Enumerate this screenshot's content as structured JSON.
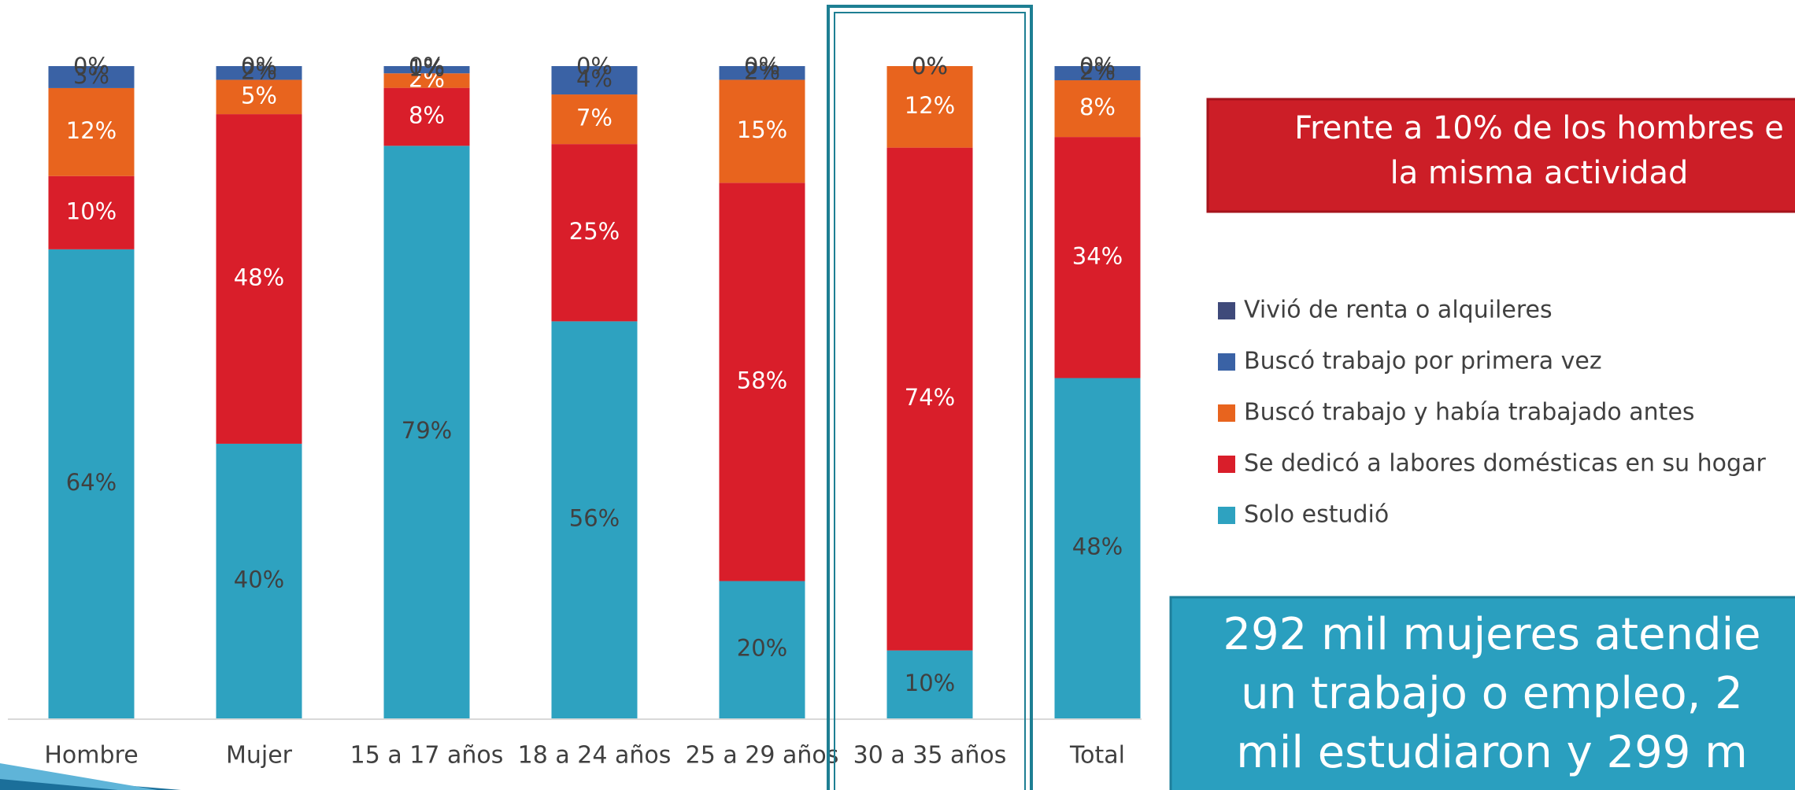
{
  "chart_data": {
    "type": "bar",
    "stacking": "percent",
    "categories": [
      "Hombre",
      "Mujer",
      "15 a 17 años",
      "18 a 24 años",
      "25 a 29 años",
      "30 a 35 años",
      "Total"
    ],
    "highlight": "30 a 35 años",
    "series": [
      {
        "name": "Solo estudió",
        "color": "#2ea2c0",
        "values": [
          64,
          40,
          79,
          56,
          20,
          10,
          48
        ],
        "value_labels": [
          "64%",
          "40%",
          "79%",
          "56%",
          "20%",
          "10%",
          "48%"
        ]
      },
      {
        "name": "Se dedicó a labores domésticas en su hogar",
        "color": "#d91e2a",
        "values": [
          10,
          48,
          8,
          25,
          58,
          74,
          34
        ],
        "value_labels": [
          "10%",
          "48%",
          "8%",
          "25%",
          "58%",
          "74%",
          "34%"
        ]
      },
      {
        "name": "Buscó trabajo y había trabajado antes",
        "color": "#e8641e",
        "values": [
          12,
          5,
          2,
          7,
          15,
          12,
          8
        ],
        "value_labels": [
          "12%",
          "5%",
          "2%",
          "7%",
          "15%",
          "12%",
          "8%"
        ]
      },
      {
        "name": "Buscó trabajo por primera vez",
        "color": "#3a62a5",
        "values": [
          3,
          2,
          1,
          4,
          2,
          0,
          2
        ],
        "value_labels": [
          "3%",
          "2%",
          "1%",
          "4%",
          "2%",
          "0%",
          "2%"
        ]
      },
      {
        "name": "Vivió de renta o alquileres",
        "color": "#3f4a7a",
        "values": [
          0,
          0,
          0,
          0,
          0,
          0,
          0
        ],
        "value_labels": [
          "0%",
          "0%",
          "0%",
          "0%",
          "0%",
          "0%",
          "0%"
        ]
      }
    ]
  },
  "callouts": {
    "red": [
      "Frente a 10% de los hombres e",
      "la misma actividad"
    ],
    "teal": [
      "292 mil mujeres atendie",
      "un trabajo o empleo, 2",
      "mil estudiaron y 299 m"
    ]
  }
}
